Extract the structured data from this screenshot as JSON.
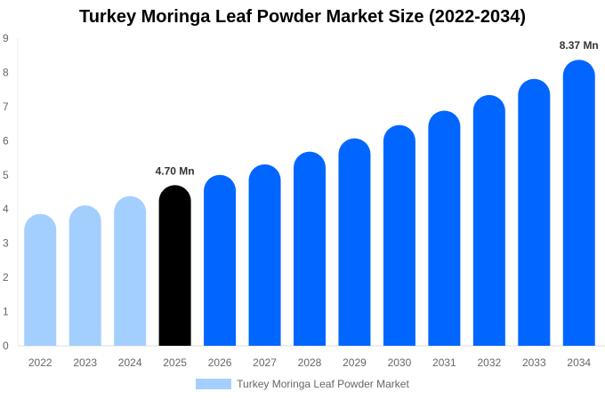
{
  "chart_data": {
    "type": "bar",
    "title": "Turkey Moringa Leaf Powder Market Size (2022-2034)",
    "categories": [
      "2022",
      "2023",
      "2024",
      "2025",
      "2026",
      "2027",
      "2028",
      "2029",
      "2030",
      "2031",
      "2032",
      "2033",
      "2034"
    ],
    "series": [
      {
        "name": "Turkey Moringa Leaf Powder Market",
        "values": [
          3.86,
          4.11,
          4.38,
          4.7,
          5.0,
          5.31,
          5.68,
          6.07,
          6.46,
          6.88,
          7.34,
          7.81,
          8.37
        ]
      }
    ],
    "data_labels": {
      "2025": "4.70 Mn",
      "2034": "8.37 Mn"
    },
    "ylim": [
      0,
      9
    ],
    "yticks": [
      "0",
      "1",
      "2",
      "3",
      "4",
      "5",
      "6",
      "7",
      "8",
      "9"
    ],
    "xlabel": "",
    "ylabel": "",
    "grid": false,
    "legend": "bottom",
    "colors": {
      "historical": "#a3cfff",
      "base_year": "#000000",
      "forecast": "#0066ff"
    }
  }
}
